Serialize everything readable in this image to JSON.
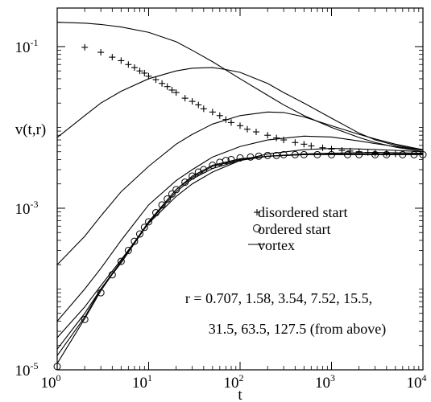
{
  "chart_data": {
    "type": "line",
    "xlabel": "t",
    "ylabel": "v(t,r)",
    "xscale": "log",
    "yscale": "log",
    "xlim": [
      1,
      10000
    ],
    "ylim": [
      1e-05,
      0.3
    ],
    "grid": false,
    "x_ticks": [
      {
        "base": "10",
        "exp": "0",
        "value": 1
      },
      {
        "base": "10",
        "exp": "1",
        "value": 10
      },
      {
        "base": "10",
        "exp": "2",
        "value": 100
      },
      {
        "base": "10",
        "exp": "3",
        "value": 1000
      },
      {
        "base": "10",
        "exp": "4",
        "value": 10000
      }
    ],
    "y_ticks": [
      {
        "base": "10",
        "exp": "-1",
        "value": 0.1
      },
      {
        "base": "10",
        "exp": "-3",
        "value": 0.001
      },
      {
        "base": "10",
        "exp": "-5",
        "value": 1e-05
      }
    ],
    "legend": {
      "placement": "center-right",
      "entries": [
        {
          "label": "disordered start",
          "marker": "plus"
        },
        {
          "label": "ordered start",
          "marker": "circle"
        },
        {
          "label": "vortex",
          "marker": "line"
        }
      ]
    },
    "annotations": [
      "r = 0.707, 1.58, 3.54, 7.52, 15.5,",
      "31.5, 63.5, 127.5  (from above)"
    ],
    "series": [
      {
        "name": "disordered start",
        "marker": "plus",
        "points": [
          [
            2,
            0.098
          ],
          [
            3,
            0.085
          ],
          [
            4,
            0.074
          ],
          [
            5,
            0.067
          ],
          [
            6,
            0.06
          ],
          [
            7,
            0.055
          ],
          [
            8,
            0.05
          ],
          [
            9,
            0.047
          ],
          [
            10,
            0.043
          ],
          [
            12,
            0.039
          ],
          [
            14,
            0.035
          ],
          [
            16,
            0.032
          ],
          [
            18,
            0.029
          ],
          [
            20,
            0.027
          ],
          [
            25,
            0.023
          ],
          [
            30,
            0.021
          ],
          [
            35,
            0.019
          ],
          [
            40,
            0.017
          ],
          [
            50,
            0.0155
          ],
          [
            60,
            0.014
          ],
          [
            70,
            0.0125
          ],
          [
            80,
            0.0115
          ],
          [
            100,
            0.0105
          ],
          [
            120,
            0.0095
          ],
          [
            150,
            0.0088
          ],
          [
            200,
            0.008
          ],
          [
            250,
            0.0074
          ],
          [
            300,
            0.007
          ],
          [
            400,
            0.0065
          ],
          [
            500,
            0.0062
          ],
          [
            600,
            0.0059
          ],
          [
            800,
            0.0056
          ],
          [
            1000,
            0.0054
          ],
          [
            1300,
            0.0052
          ],
          [
            1600,
            0.0051
          ],
          [
            2000,
            0.005
          ],
          [
            2500,
            0.0049
          ],
          [
            3000,
            0.0048
          ],
          [
            4000,
            0.0048
          ],
          [
            5000,
            0.0047
          ]
        ]
      },
      {
        "name": "ordered start",
        "marker": "circle",
        "points": [
          [
            1,
            1.1e-05
          ],
          [
            2,
            4.2e-05
          ],
          [
            3,
            9e-05
          ],
          [
            4,
            0.00015
          ],
          [
            5,
            0.00022
          ],
          [
            6,
            0.0003
          ],
          [
            7,
            0.00039
          ],
          [
            8,
            0.00048
          ],
          [
            9,
            0.00058
          ],
          [
            10,
            0.00068
          ],
          [
            12,
            0.00088
          ],
          [
            14,
            0.0011
          ],
          [
            16,
            0.0013
          ],
          [
            18,
            0.0015
          ],
          [
            20,
            0.0017
          ],
          [
            25,
            0.0021
          ],
          [
            30,
            0.0025
          ],
          [
            35,
            0.0028
          ],
          [
            40,
            0.003
          ],
          [
            50,
            0.0034
          ],
          [
            60,
            0.0037
          ],
          [
            70,
            0.0039
          ],
          [
            80,
            0.004
          ],
          [
            100,
            0.0042
          ],
          [
            130,
            0.0043
          ],
          [
            160,
            0.0044
          ],
          [
            200,
            0.0045
          ],
          [
            250,
            0.0045
          ],
          [
            300,
            0.0046
          ],
          [
            400,
            0.0046
          ],
          [
            500,
            0.0046
          ],
          [
            700,
            0.0046
          ],
          [
            1000,
            0.0046
          ],
          [
            1500,
            0.0046
          ],
          [
            2000,
            0.0046
          ],
          [
            3000,
            0.0046
          ],
          [
            4000,
            0.0046
          ],
          [
            6000,
            0.0046
          ],
          [
            8000,
            0.0046
          ],
          [
            10000,
            0.0046
          ]
        ]
      },
      {
        "name": "vortex",
        "marker": "line",
        "r": "0.707",
        "points": [
          [
            1,
            0.2
          ],
          [
            2,
            0.195
          ],
          [
            3,
            0.188
          ],
          [
            5,
            0.175
          ],
          [
            10,
            0.15
          ],
          [
            20,
            0.115
          ],
          [
            30,
            0.09
          ],
          [
            50,
            0.065
          ],
          [
            100,
            0.04
          ],
          [
            200,
            0.025
          ],
          [
            300,
            0.019
          ],
          [
            500,
            0.014
          ],
          [
            1000,
            0.01
          ],
          [
            2000,
            0.0075
          ],
          [
            3000,
            0.0065
          ],
          [
            5000,
            0.0057
          ],
          [
            10000,
            0.005
          ]
        ]
      },
      {
        "name": "vortex",
        "marker": "line",
        "r": "1.58",
        "points": [
          [
            1,
            0.0075
          ],
          [
            2,
            0.014
          ],
          [
            3,
            0.02
          ],
          [
            5,
            0.028
          ],
          [
            10,
            0.04
          ],
          [
            20,
            0.05
          ],
          [
            30,
            0.054
          ],
          [
            50,
            0.055
          ],
          [
            70,
            0.052
          ],
          [
            100,
            0.048
          ],
          [
            200,
            0.035
          ],
          [
            300,
            0.027
          ],
          [
            500,
            0.02
          ],
          [
            1000,
            0.013
          ],
          [
            2000,
            0.0085
          ],
          [
            3000,
            0.007
          ],
          [
            5000,
            0.006
          ],
          [
            10000,
            0.0052
          ]
        ]
      },
      {
        "name": "vortex",
        "marker": "line",
        "r": "3.54",
        "points": [
          [
            1,
            0.0002
          ],
          [
            2,
            0.00045
          ],
          [
            3,
            0.0008
          ],
          [
            5,
            0.0016
          ],
          [
            10,
            0.0033
          ],
          [
            20,
            0.0062
          ],
          [
            30,
            0.0082
          ],
          [
            50,
            0.011
          ],
          [
            100,
            0.014
          ],
          [
            200,
            0.0155
          ],
          [
            300,
            0.0153
          ],
          [
            500,
            0.0135
          ],
          [
            1000,
            0.0105
          ],
          [
            2000,
            0.0082
          ],
          [
            3000,
            0.0072
          ],
          [
            5000,
            0.0062
          ],
          [
            10000,
            0.0053
          ]
        ]
      },
      {
        "name": "vortex",
        "marker": "line",
        "r": "7.52",
        "points": [
          [
            1,
            4e-05
          ],
          [
            2,
            0.0001
          ],
          [
            3,
            0.00018
          ],
          [
            5,
            0.0004
          ],
          [
            10,
            0.0011
          ],
          [
            20,
            0.0022
          ],
          [
            30,
            0.003
          ],
          [
            50,
            0.0043
          ],
          [
            100,
            0.0058
          ],
          [
            200,
            0.007
          ],
          [
            500,
            0.0078
          ],
          [
            1000,
            0.0076
          ],
          [
            2000,
            0.0068
          ],
          [
            3000,
            0.0063
          ],
          [
            5000,
            0.0058
          ],
          [
            10000,
            0.0052
          ]
        ]
      },
      {
        "name": "vortex",
        "marker": "line",
        "r": "15.5",
        "points": [
          [
            1,
            2.5e-05
          ],
          [
            2,
            6e-05
          ],
          [
            3,
            0.00011
          ],
          [
            5,
            0.00023
          ],
          [
            10,
            0.00065
          ],
          [
            20,
            0.0014
          ],
          [
            30,
            0.002
          ],
          [
            50,
            0.0028
          ],
          [
            100,
            0.0039
          ],
          [
            200,
            0.0047
          ],
          [
            500,
            0.0053
          ],
          [
            1000,
            0.0055
          ],
          [
            2000,
            0.0054
          ],
          [
            5000,
            0.0052
          ],
          [
            10000,
            0.005
          ]
        ]
      },
      {
        "name": "vortex",
        "marker": "line",
        "r": "31.5",
        "points": [
          [
            1,
            1.8e-05
          ],
          [
            2,
            5e-05
          ],
          [
            3,
            0.0001
          ],
          [
            5,
            0.00021
          ],
          [
            10,
            0.00066
          ],
          [
            20,
            0.0016
          ],
          [
            30,
            0.0023
          ],
          [
            50,
            0.0031
          ],
          [
            100,
            0.0039
          ],
          [
            200,
            0.0044
          ],
          [
            500,
            0.0047
          ],
          [
            1000,
            0.0048
          ],
          [
            3000,
            0.0049
          ],
          [
            10000,
            0.0048
          ]
        ]
      },
      {
        "name": "vortex",
        "marker": "line",
        "r": "63.5",
        "points": [
          [
            1,
            1.5e-05
          ],
          [
            2,
            4.5e-05
          ],
          [
            3,
            0.0001
          ],
          [
            5,
            0.00022
          ],
          [
            10,
            0.00068
          ],
          [
            20,
            0.0017
          ],
          [
            30,
            0.0024
          ],
          [
            50,
            0.0033
          ],
          [
            100,
            0.004
          ],
          [
            200,
            0.0044
          ],
          [
            500,
            0.0046
          ],
          [
            1000,
            0.0047
          ],
          [
            3000,
            0.0047
          ],
          [
            10000,
            0.0047
          ]
        ]
      },
      {
        "name": "vortex",
        "marker": "line",
        "r": "127.5",
        "points": [
          [
            1,
            1.2e-05
          ],
          [
            2,
            4.3e-05
          ],
          [
            3,
            9.5e-05
          ],
          [
            5,
            0.00022
          ],
          [
            10,
            0.00068
          ],
          [
            20,
            0.0017
          ],
          [
            30,
            0.0025
          ],
          [
            50,
            0.0034
          ],
          [
            100,
            0.0041
          ],
          [
            200,
            0.0044
          ],
          [
            500,
            0.0046
          ],
          [
            1000,
            0.0046
          ],
          [
            3000,
            0.0046
          ],
          [
            10000,
            0.0046
          ]
        ]
      }
    ]
  }
}
